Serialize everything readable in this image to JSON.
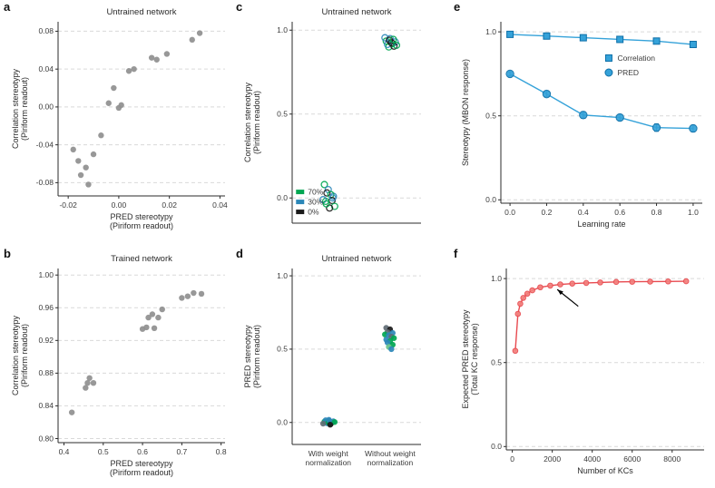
{
  "figure": {
    "panels": [
      {
        "letter": "a"
      },
      {
        "letter": "c"
      },
      {
        "letter": "e"
      },
      {
        "letter": "b"
      },
      {
        "letter": "d"
      },
      {
        "letter": "f"
      }
    ]
  },
  "colors": {
    "gray_points": "#8f8f8f",
    "green_70pct": "#00a651",
    "blue_30pct": "#2b87b8",
    "black_0pct": "#1a1a1a",
    "slate": "#5f6b74",
    "blue_line": "#35a2d9",
    "blue_edge": "#0d6fa8",
    "red_line": "#e84a50",
    "red_marker": "#f2817d"
  },
  "chart_data": [
    {
      "id": "a",
      "type": "scatter",
      "title": "Untrained network",
      "xlabel": [
        "PRED stereotypy",
        "(Piriform readout)"
      ],
      "ylabel": [
        "Correlation stereotypy",
        "(Piriform readout)"
      ],
      "xlim": [
        -0.024,
        0.042
      ],
      "ylim": [
        -0.094,
        0.09
      ],
      "xticks": [
        -0.02,
        0,
        0.02,
        0.04
      ],
      "xtick_labels": [
        "-0.02",
        "0.00",
        "0.02",
        "0.04"
      ],
      "yticks": [
        -0.08,
        -0.04,
        0,
        0.04,
        0.08
      ],
      "ytick_labels": [
        "-0.08",
        "-0.04",
        "0.00",
        "0.04",
        "0.08"
      ],
      "grid": "y",
      "series": [
        {
          "name": "untrained-readout-points",
          "marker": "circle",
          "size": 3.2,
          "color": "#8f8f8f",
          "x": [
            -0.018,
            -0.016,
            -0.015,
            -0.013,
            -0.012,
            -0.01,
            -0.007,
            -0.004,
            -0.002,
            0.0,
            0.001,
            0.004,
            0.006,
            0.013,
            0.015,
            0.019,
            0.029,
            0.032
          ],
          "y": [
            -0.045,
            -0.057,
            -0.072,
            -0.064,
            -0.082,
            -0.05,
            -0.03,
            0.004,
            0.02,
            -0.001,
            0.002,
            0.038,
            0.04,
            0.052,
            0.05,
            0.056,
            0.071,
            0.078
          ]
        }
      ]
    },
    {
      "id": "c",
      "type": "scatter",
      "title": "Untrained network",
      "xlabel": [],
      "ylabel": [
        "Correlation stereotypy",
        "(Piriform readout)"
      ],
      "xlim": [
        0,
        1
      ],
      "ylim": [
        -0.15,
        1.05
      ],
      "xticks": [],
      "xtick_labels": [],
      "yticks": [
        0,
        0.5,
        1.0
      ],
      "ytick_labels": [
        "0.0",
        "0.5",
        "1.0"
      ],
      "grid": "y",
      "legend": {
        "x": 0.03,
        "y": 0.845,
        "dy": 11,
        "marker_type": "swatch",
        "items": [
          {
            "label": "70%",
            "color": "#00a651"
          },
          {
            "label": "30%",
            "color": "#2b87b8"
          },
          {
            "label": "0%",
            "color": "#1a1a1a"
          }
        ]
      },
      "series": [
        {
          "name": "low-cluster",
          "marker": "circle",
          "open": true,
          "size": 3.4,
          "x": [
            0.25,
            0.28,
            0.27,
            0.32,
            0.3,
            0.31,
            0.26,
            0.24,
            0.33,
            0.29,
            0.315,
            0.265
          ],
          "y": [
            0.08,
            0.05,
            0.03,
            0.01,
            0.02,
            -0.015,
            -0.02,
            -0.01,
            -0.05,
            -0.06,
            0.0,
            -0.035
          ],
          "colors": [
            "#00a651",
            "#2b87b8",
            "#1a1a1a",
            "#2b87b8",
            "#00a651",
            "#1a1a1a",
            "#00a651",
            "#2b87b8",
            "#00a651",
            "#1a1a1a",
            "#2b87b8",
            "#00a651"
          ]
        },
        {
          "name": "high-cluster",
          "marker": "circle",
          "open": true,
          "size": 3.4,
          "x": [
            0.73,
            0.76,
            0.75,
            0.78,
            0.8,
            0.74,
            0.79,
            0.77,
            0.81,
            0.72,
            0.755,
            0.785
          ],
          "y": [
            0.935,
            0.95,
            0.9,
            0.92,
            0.93,
            0.915,
            0.905,
            0.925,
            0.91,
            0.955,
            0.94,
            0.945
          ],
          "colors": [
            "#00a651",
            "#2b87b8",
            "#00a651",
            "#00a651",
            "#2b87b8",
            "#2b87b8",
            "#1a1a1a",
            "#1a1a1a",
            "#00a651",
            "#2b87b8",
            "#1a1a1a",
            "#00a651"
          ]
        }
      ]
    },
    {
      "id": "e",
      "type": "line",
      "title": "",
      "xlabel": [
        "Learning rate"
      ],
      "ylabel": [
        "Stereotypy (MBON response)"
      ],
      "xlim": [
        -0.05,
        1.05
      ],
      "ylim": [
        -0.02,
        1.06
      ],
      "xticks": [
        0,
        0.2,
        0.4,
        0.6,
        0.8,
        1.0
      ],
      "xtick_labels": [
        "0.0",
        "0.2",
        "0.4",
        "0.6",
        "0.8",
        "1.0"
      ],
      "yticks": [
        0,
        0.5,
        1.0
      ],
      "ytick_labels": [
        "0.0",
        "0.5",
        "1.0"
      ],
      "grid": "y",
      "legend": {
        "x": 0.52,
        "y": 0.2,
        "dy": 16,
        "marker_type": "series",
        "items": [
          {
            "label": "Correlation",
            "marker": "square",
            "color": "#35a2d9",
            "edge": "#0d6fa8"
          },
          {
            "label": "PRED",
            "marker": "circle",
            "color": "#35a2d9",
            "edge": "#0d6fa8"
          }
        ]
      },
      "series": [
        {
          "name": "Correlation",
          "marker": "square",
          "size": 3.5,
          "line": true,
          "color": "#35a2d9",
          "edge": "#0d6fa8",
          "x": [
            0,
            0.2,
            0.4,
            0.6,
            0.8,
            1.0
          ],
          "y": [
            0.985,
            0.975,
            0.965,
            0.955,
            0.945,
            0.925
          ]
        },
        {
          "name": "PRED",
          "marker": "circle",
          "size": 4.2,
          "line": true,
          "color": "#35a2d9",
          "edge": "#0d6fa8",
          "x": [
            0,
            0.2,
            0.4,
            0.6,
            0.8,
            1.0
          ],
          "y": [
            0.75,
            0.63,
            0.505,
            0.49,
            0.43,
            0.425
          ],
          "yerr": [
            0.012,
            0.015,
            0.02,
            0.018,
            0.022,
            0.02
          ]
        }
      ]
    },
    {
      "id": "b",
      "type": "scatter",
      "title": "Trained network",
      "xlabel": [
        "PRED stereotypy",
        "(Piriform readout)"
      ],
      "ylabel": [
        "Correlation stereotypy",
        "(Piriform readout)"
      ],
      "xlim": [
        0.385,
        0.81
      ],
      "ylim": [
        0.795,
        1.008
      ],
      "xticks": [
        0.4,
        0.5,
        0.6,
        0.7,
        0.8
      ],
      "xtick_labels": [
        "0.4",
        "0.5",
        "0.6",
        "0.7",
        "0.8"
      ],
      "yticks": [
        0.8,
        0.84,
        0.88,
        0.92,
        0.96,
        1.0
      ],
      "ytick_labels": [
        "0.80",
        "0.84",
        "0.88",
        "0.92",
        "0.96",
        "1.00"
      ],
      "grid": "y",
      "series": [
        {
          "name": "trained-readout-points",
          "marker": "circle",
          "size": 3.2,
          "color": "#8f8f8f",
          "x": [
            0.42,
            0.455,
            0.46,
            0.465,
            0.475,
            0.6,
            0.61,
            0.615,
            0.625,
            0.63,
            0.64,
            0.65,
            0.7,
            0.715,
            0.73,
            0.75
          ],
          "y": [
            0.832,
            0.862,
            0.868,
            0.874,
            0.868,
            0.934,
            0.936,
            0.948,
            0.952,
            0.935,
            0.948,
            0.958,
            0.972,
            0.974,
            0.978,
            0.977
          ]
        }
      ]
    },
    {
      "id": "d",
      "type": "scatter",
      "title": "Untrained network",
      "xlabel": [],
      "ylabel": [
        "PRED stereotypy",
        "(Piriform readout)"
      ],
      "xlim": [
        0,
        1
      ],
      "ylim": [
        -0.15,
        1.05
      ],
      "xticks": [],
      "xtick_labels": [],
      "yticks": [
        0,
        0.5,
        1.0
      ],
      "ytick_labels": [
        "0.0",
        "0.5",
        "1.0"
      ],
      "grid": "y",
      "xcats": [
        {
          "x": 0.28,
          "lines": [
            "With weight",
            "normalization"
          ]
        },
        {
          "x": 0.76,
          "lines": [
            "Without weight",
            "normalization"
          ]
        }
      ],
      "series": [
        {
          "name": "with-normalization",
          "marker": "circle",
          "size": 3.2,
          "x": [
            0.25,
            0.27,
            0.29,
            0.31,
            0.26,
            0.3,
            0.28,
            0.32,
            0.24,
            0.33,
            0.285,
            0.295
          ],
          "y": [
            0.005,
            -0.005,
            0.01,
            0.0,
            0.015,
            -0.01,
            0.0,
            0.008,
            -0.008,
            0.003,
            0.018,
            -0.015
          ],
          "colors": [
            "#00a651",
            "#2b87b8",
            "#5f6b74",
            "#00a651",
            "#2b87b8",
            "#1a1a1a",
            "#00a651",
            "#2b87b8",
            "#5f6b74",
            "#00a651",
            "#2b87b8",
            "#1a1a1a"
          ]
        },
        {
          "name": "without-normalization",
          "marker": "circle",
          "size": 3.2,
          "x": [
            0.73,
            0.76,
            0.74,
            0.78,
            0.72,
            0.75,
            0.77,
            0.79,
            0.73,
            0.76,
            0.74,
            0.78,
            0.75,
            0.77
          ],
          "y": [
            0.645,
            0.635,
            0.615,
            0.61,
            0.6,
            0.595,
            0.585,
            0.575,
            0.565,
            0.555,
            0.545,
            0.53,
            0.515,
            0.5
          ],
          "colors": [
            "#5f6b74",
            "#1a1a1a",
            "#5f6b74",
            "#2b87b8",
            "#00a651",
            "#2b87b8",
            "#5f6b74",
            "#00a651",
            "#2b87b8",
            "#00a651",
            "#2b87b8",
            "#00a651",
            "#66c28a",
            "#2b87b8"
          ]
        }
      ]
    },
    {
      "id": "f",
      "type": "line",
      "title": "",
      "xlabel": [
        "Number of KCs"
      ],
      "ylabel": [
        "Expected PRED stereotypy",
        "(Total KC response)"
      ],
      "xlim": [
        -300,
        9600
      ],
      "ylim": [
        -0.02,
        1.06
      ],
      "xticks": [
        0,
        2000,
        4000,
        6000,
        8000
      ],
      "xtick_labels": [
        "0",
        "2000",
        "4000",
        "6000",
        "8000"
      ],
      "yticks": [
        0,
        0.5,
        1.0
      ],
      "ytick_labels": [
        "0.0",
        "0.5",
        "1.0"
      ],
      "grid": "y",
      "annotations": [
        {
          "type": "arrow",
          "from": [
            3300,
            0.835
          ],
          "to": [
            2250,
            0.935
          ]
        }
      ],
      "series": [
        {
          "name": "expected-pred-stereotypy",
          "marker": "circle",
          "size": 2.8,
          "line": true,
          "color": "#f2817d",
          "edge": "#e84a50",
          "line_color": "#e84a50",
          "x": [
            150,
            280,
            400,
            550,
            750,
            1000,
            1400,
            1900,
            2400,
            3000,
            3700,
            4400,
            5200,
            6000,
            6900,
            7800,
            8700
          ],
          "y": [
            0.57,
            0.79,
            0.85,
            0.885,
            0.91,
            0.93,
            0.948,
            0.958,
            0.965,
            0.97,
            0.974,
            0.977,
            0.98,
            0.981,
            0.982,
            0.983,
            0.984
          ]
        }
      ]
    }
  ]
}
